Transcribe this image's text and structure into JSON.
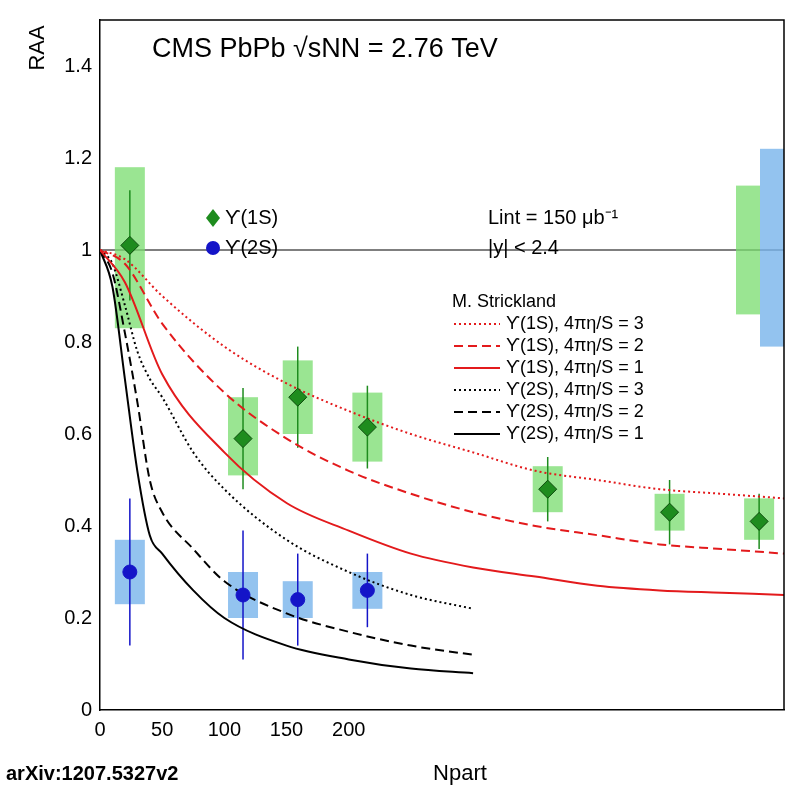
{
  "chart_data": {
    "type": "scatter",
    "title": "CMS PbPb √sNN = 2.76 TeV",
    "x_label": "Npart",
    "y_label": "RAA",
    "xlim": [
      0,
      550
    ],
    "xticks": [
      0,
      50,
      100,
      150,
      200
    ],
    "ylim": [
      0,
      1.5
    ],
    "yticks": [
      0,
      0.2,
      0.4,
      0.6,
      0.8,
      1,
      1.2,
      1.4
    ],
    "grid": false,
    "reference_line": 1,
    "annotations": [
      "Lint = 150 μb⁻¹",
      "|y| < 2.4",
      "arXiv:1207.5327v2"
    ],
    "model_legend_title": "M. Strickland",
    "series": [
      {
        "name": "ϒ(1S)",
        "type": "scatter",
        "marker": "diamond",
        "color": "#1e8c1e",
        "x": [
          24,
          115,
          159,
          215,
          360,
          458,
          530
        ],
        "values": [
          1.01,
          0.59,
          0.68,
          0.615,
          0.48,
          0.43,
          0.41
        ],
        "errors": [
          0.12,
          0.11,
          0.11,
          0.09,
          0.07,
          0.07,
          0.06
        ],
        "syst": [
          [
            0.83,
            1.18
          ],
          [
            0.51,
            0.68
          ],
          [
            0.6,
            0.76
          ],
          [
            0.54,
            0.69
          ],
          [
            0.43,
            0.53
          ],
          [
            0.39,
            0.47
          ],
          [
            0.37,
            0.46
          ]
        ],
        "global_uncertainty": [
          0.86,
          1.14
        ]
      },
      {
        "name": "ϒ(2S)",
        "type": "scatter",
        "marker": "circle",
        "color": "#1414c8",
        "x": [
          24,
          115,
          159,
          215
        ],
        "values": [
          0.3,
          0.25,
          0.24,
          0.26
        ],
        "errors": [
          0.16,
          0.14,
          0.1,
          0.08
        ],
        "syst": [
          [
            0.23,
            0.37
          ],
          [
            0.2,
            0.3
          ],
          [
            0.2,
            0.28
          ],
          [
            0.22,
            0.3
          ]
        ],
        "global_uncertainty": [
          0.79,
          1.22
        ]
      },
      {
        "name": "ϒ(1S), 4πη/S = 3",
        "type": "line",
        "line_style": "dotted",
        "color": "#e31a1c",
        "x": [
          0,
          20,
          50,
          100,
          150,
          200,
          250,
          300,
          350,
          400,
          450,
          500,
          550
        ],
        "values": [
          1,
          0.98,
          0.9,
          0.79,
          0.71,
          0.65,
          0.6,
          0.56,
          0.52,
          0.5,
          0.48,
          0.47,
          0.46
        ]
      },
      {
        "name": "ϒ(1S), 4πη/S = 2",
        "type": "line",
        "line_style": "dashed",
        "color": "#e31a1c",
        "x": [
          0,
          20,
          50,
          100,
          150,
          200,
          250,
          300,
          350,
          400,
          450,
          500,
          550
        ],
        "values": [
          1,
          0.97,
          0.84,
          0.69,
          0.59,
          0.52,
          0.47,
          0.43,
          0.4,
          0.38,
          0.36,
          0.35,
          0.34
        ]
      },
      {
        "name": "ϒ(1S), 4πη/S = 1",
        "type": "line",
        "line_style": "solid",
        "color": "#e31a1c",
        "x": [
          0,
          20,
          50,
          100,
          150,
          200,
          250,
          300,
          350,
          400,
          450,
          500,
          550
        ],
        "values": [
          1,
          0.93,
          0.73,
          0.56,
          0.45,
          0.39,
          0.34,
          0.31,
          0.29,
          0.27,
          0.26,
          0.255,
          0.25
        ]
      },
      {
        "name": "ϒ(2S), 4πη/S = 3",
        "type": "line",
        "line_style": "dotted",
        "color": "#000000",
        "x": [
          0,
          10,
          20,
          30,
          40,
          50,
          75,
          100,
          150,
          200,
          250,
          300
        ],
        "values": [
          1,
          0.97,
          0.88,
          0.78,
          0.72,
          0.68,
          0.56,
          0.48,
          0.37,
          0.3,
          0.25,
          0.22
        ]
      },
      {
        "name": "ϒ(2S), 4πη/S = 2",
        "type": "line",
        "line_style": "dashed",
        "color": "#000000",
        "x": [
          0,
          10,
          20,
          30,
          40,
          50,
          75,
          100,
          150,
          200,
          250,
          300
        ],
        "values": [
          1,
          0.95,
          0.82,
          0.67,
          0.5,
          0.43,
          0.35,
          0.28,
          0.21,
          0.17,
          0.14,
          0.12
        ]
      },
      {
        "name": "ϒ(2S), 4πη/S = 1",
        "type": "line",
        "line_style": "solid",
        "color": "#000000",
        "x": [
          0,
          10,
          20,
          30,
          40,
          50,
          75,
          100,
          150,
          200,
          250,
          300
        ],
        "values": [
          1,
          0.92,
          0.72,
          0.52,
          0.38,
          0.34,
          0.26,
          0.2,
          0.14,
          0.11,
          0.09,
          0.08
        ]
      }
    ]
  }
}
